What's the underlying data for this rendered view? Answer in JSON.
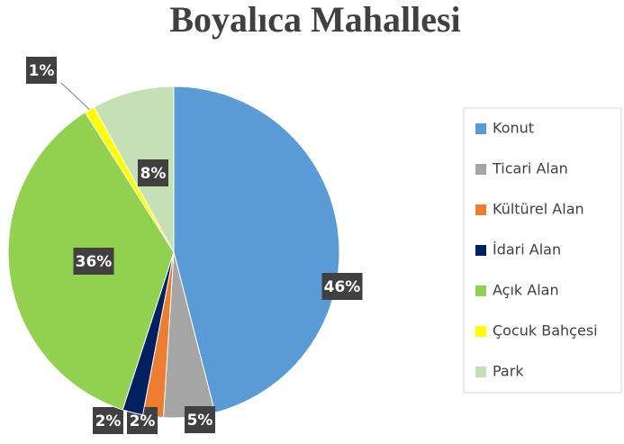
{
  "chart_data": {
    "type": "pie",
    "title": "Boyalıca Mahallesi",
    "categories": [
      "Konut",
      "Ticari Alan",
      "Kültürel Alan",
      "İdari Alan",
      "Açık Alan",
      "Çocuk Bahçesi",
      "Park"
    ],
    "values": [
      46,
      5,
      2,
      2,
      36,
      1,
      8
    ],
    "value_labels": [
      "46%",
      "5%",
      "2%",
      "2%",
      "36%",
      "1%",
      "8%"
    ],
    "colors": [
      "#5b9bd5",
      "#a5a5a5",
      "#ed7d31",
      "#002060",
      "#92d050",
      "#ffff00",
      "#c5e0b4"
    ],
    "legend": "right"
  }
}
